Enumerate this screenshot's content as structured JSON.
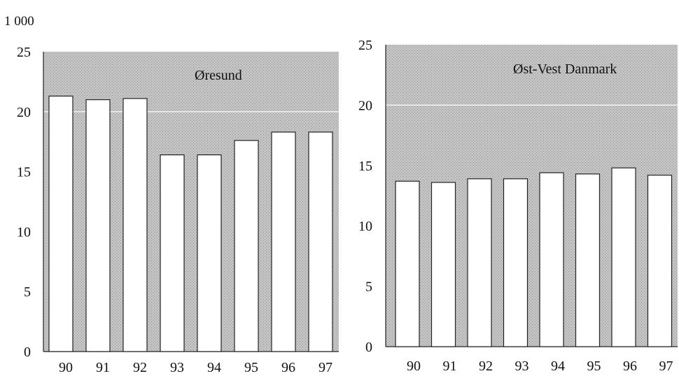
{
  "unit_label": "1 000",
  "chart_data": [
    {
      "type": "bar",
      "title": "Øresund",
      "categories": [
        "90",
        "91",
        "92",
        "93",
        "94",
        "95",
        "96",
        "97"
      ],
      "values": [
        21.3,
        21.0,
        21.1,
        16.4,
        16.4,
        17.6,
        18.3,
        18.3
      ],
      "ylim": [
        0,
        25
      ],
      "yticks": [
        "0",
        "5",
        "10",
        "15",
        "20",
        "25"
      ],
      "grid": "major lines at 20 and 25 only",
      "colors": {
        "plot_bg": "#bdbdbd",
        "bar_fill": "#ffffff",
        "bar_stroke": "#222222",
        "grid": "#f2f2f2"
      }
    },
    {
      "type": "bar",
      "title": "Øst-Vest Danmark",
      "categories": [
        "90",
        "91",
        "92",
        "93",
        "94",
        "95",
        "96",
        "97"
      ],
      "values": [
        13.7,
        13.6,
        13.9,
        13.9,
        14.4,
        14.3,
        14.8,
        14.2
      ],
      "ylim": [
        0,
        25
      ],
      "yticks": [
        "0",
        "5",
        "10",
        "15",
        "20",
        "25"
      ],
      "grid": "major lines at 20 and 25 only",
      "colors": {
        "plot_bg": "#bdbdbd",
        "bar_fill": "#ffffff",
        "bar_stroke": "#222222",
        "grid": "#f2f2f2"
      }
    }
  ]
}
